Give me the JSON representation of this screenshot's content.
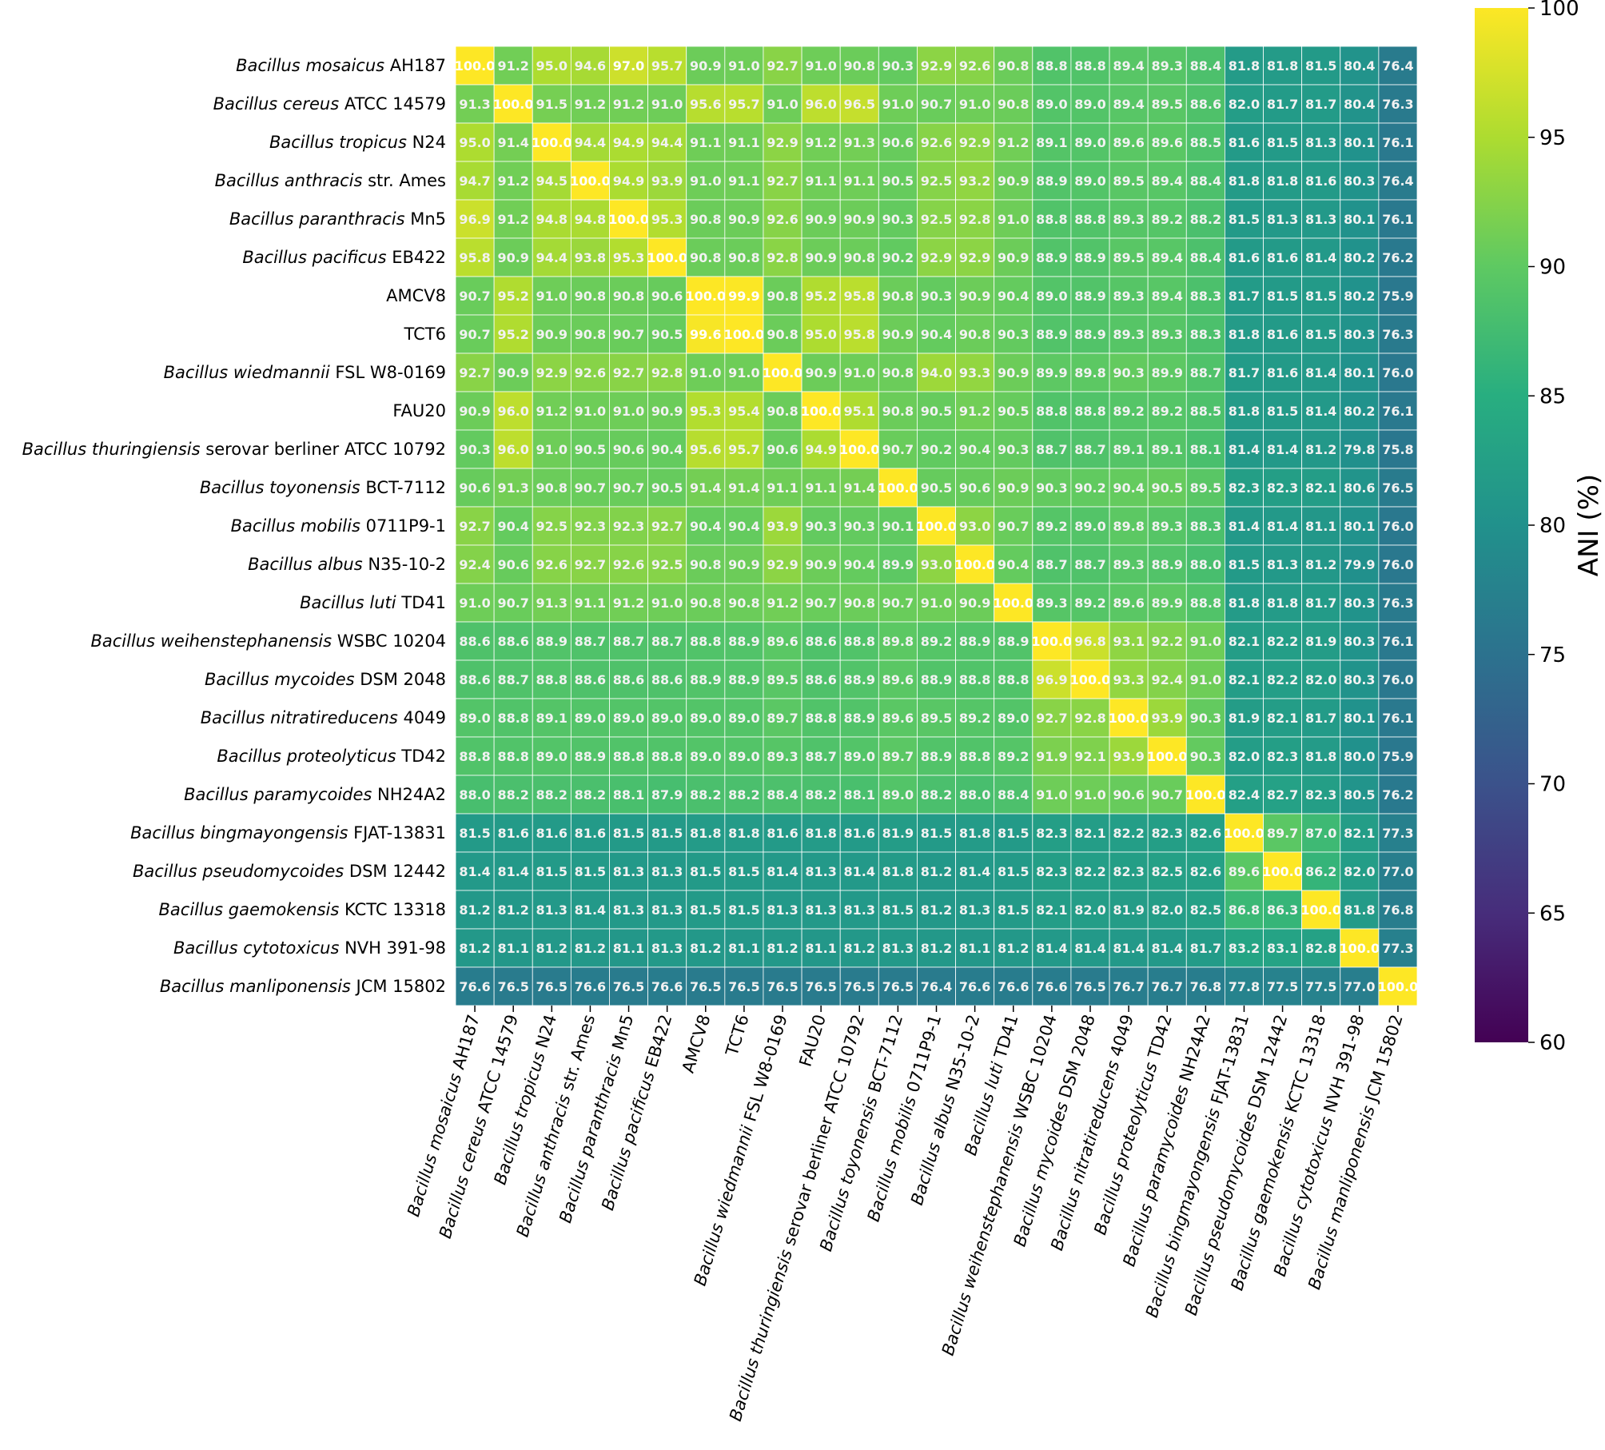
{
  "chart_data": {
    "type": "heatmap",
    "title": "",
    "xlabel": "",
    "ylabel": "",
    "labels": [
      {
        "sp": "Bacillus mosaicus",
        "strain": " AH187"
      },
      {
        "sp": "Bacillus cereus",
        "strain": " ATCC 14579"
      },
      {
        "sp": "Bacillus tropicus",
        "strain": " N24"
      },
      {
        "sp": "Bacillus anthracis",
        "strain": " str. Ames"
      },
      {
        "sp": "Bacillus paranthracis",
        "strain": " Mn5"
      },
      {
        "sp": "Bacillus pacificus",
        "strain": " EB422"
      },
      {
        "sp": "",
        "strain": "AMCV8"
      },
      {
        "sp": "",
        "strain": "TCT6"
      },
      {
        "sp": "Bacillus wiedmannii",
        "strain": " FSL W8-0169"
      },
      {
        "sp": "",
        "strain": "FAU20"
      },
      {
        "sp": "Bacillus thuringiensis",
        "strain": " serovar berliner ATCC 10792"
      },
      {
        "sp": "Bacillus toyonensis",
        "strain": " BCT-7112"
      },
      {
        "sp": "Bacillus mobilis",
        "strain": " 0711P9-1"
      },
      {
        "sp": "Bacillus albus",
        "strain": " N35-10-2"
      },
      {
        "sp": "Bacillus luti",
        "strain": " TD41"
      },
      {
        "sp": "Bacillus weihenstephanensis",
        "strain": " WSBC 10204"
      },
      {
        "sp": "Bacillus mycoides",
        "strain": " DSM 2048"
      },
      {
        "sp": "Bacillus nitratireducens",
        "strain": " 4049"
      },
      {
        "sp": "Bacillus proteolyticus",
        "strain": " TD42"
      },
      {
        "sp": "Bacillus paramycoides",
        "strain": " NH24A2"
      },
      {
        "sp": "Bacillus bingmayongensis",
        "strain": " FJAT-13831"
      },
      {
        "sp": "Bacillus pseudomycoides",
        "strain": " DSM 12442"
      },
      {
        "sp": "Bacillus gaemokensis",
        "strain": " KCTC 13318"
      },
      {
        "sp": "Bacillus cytotoxicus",
        "strain": " NVH 391-98"
      },
      {
        "sp": "Bacillus manliponensis",
        "strain": " JCM 15802"
      }
    ],
    "values": [
      [
        100.0,
        91.2,
        95.0,
        94.6,
        97.0,
        95.7,
        90.9,
        91.0,
        92.7,
        91.0,
        90.8,
        90.3,
        92.9,
        92.6,
        90.8,
        88.8,
        88.8,
        89.4,
        89.3,
        88.4,
        81.8,
        81.8,
        81.5,
        80.4,
        76.4
      ],
      [
        91.3,
        100.0,
        91.5,
        91.2,
        91.2,
        91.0,
        95.6,
        95.7,
        91.0,
        96.0,
        96.5,
        91.0,
        90.7,
        91.0,
        90.8,
        89.0,
        89.0,
        89.4,
        89.5,
        88.6,
        82.0,
        81.7,
        81.7,
        80.4,
        76.3
      ],
      [
        95.0,
        91.4,
        100.0,
        94.4,
        94.9,
        94.4,
        91.1,
        91.1,
        92.9,
        91.2,
        91.3,
        90.6,
        92.6,
        92.9,
        91.2,
        89.1,
        89.0,
        89.6,
        89.6,
        88.5,
        81.6,
        81.5,
        81.3,
        80.1,
        76.1
      ],
      [
        94.7,
        91.2,
        94.5,
        100.0,
        94.9,
        93.9,
        91.0,
        91.1,
        92.7,
        91.1,
        91.1,
        90.5,
        92.5,
        93.2,
        90.9,
        88.9,
        89.0,
        89.5,
        89.4,
        88.4,
        81.8,
        81.8,
        81.6,
        80.3,
        76.4
      ],
      [
        96.9,
        91.2,
        94.8,
        94.8,
        100.0,
        95.3,
        90.8,
        90.9,
        92.6,
        90.9,
        90.9,
        90.3,
        92.5,
        92.8,
        91.0,
        88.8,
        88.8,
        89.3,
        89.2,
        88.2,
        81.5,
        81.3,
        81.3,
        80.1,
        76.1
      ],
      [
        95.8,
        90.9,
        94.4,
        93.8,
        95.3,
        100.0,
        90.8,
        90.8,
        92.8,
        90.9,
        90.8,
        90.2,
        92.9,
        92.9,
        90.9,
        88.9,
        88.9,
        89.5,
        89.4,
        88.4,
        81.6,
        81.6,
        81.4,
        80.2,
        76.2
      ],
      [
        90.7,
        95.2,
        91.0,
        90.8,
        90.8,
        90.6,
        100.0,
        99.9,
        90.8,
        95.2,
        95.8,
        90.8,
        90.3,
        90.9,
        90.4,
        89.0,
        88.9,
        89.3,
        89.4,
        88.3,
        81.7,
        81.5,
        81.5,
        80.2,
        75.9
      ],
      [
        90.7,
        95.2,
        90.9,
        90.8,
        90.7,
        90.5,
        99.6,
        100.0,
        90.8,
        95.0,
        95.8,
        90.9,
        90.4,
        90.8,
        90.3,
        88.9,
        88.9,
        89.3,
        89.3,
        88.3,
        81.8,
        81.6,
        81.5,
        80.3,
        76.3
      ],
      [
        92.7,
        90.9,
        92.9,
        92.6,
        92.7,
        92.8,
        91.0,
        91.0,
        100.0,
        90.9,
        91.0,
        90.8,
        94.0,
        93.3,
        90.9,
        89.9,
        89.8,
        90.3,
        89.9,
        88.7,
        81.7,
        81.6,
        81.4,
        80.1,
        76.0
      ],
      [
        90.9,
        96.0,
        91.2,
        91.0,
        91.0,
        90.9,
        95.3,
        95.4,
        90.8,
        100.0,
        95.1,
        90.8,
        90.5,
        91.2,
        90.5,
        88.8,
        88.8,
        89.2,
        89.2,
        88.5,
        81.8,
        81.5,
        81.4,
        80.2,
        76.1
      ],
      [
        90.3,
        96.0,
        91.0,
        90.5,
        90.6,
        90.4,
        95.6,
        95.7,
        90.6,
        94.9,
        100.0,
        90.7,
        90.2,
        90.4,
        90.3,
        88.7,
        88.7,
        89.1,
        89.1,
        88.1,
        81.4,
        81.4,
        81.2,
        79.8,
        75.8
      ],
      [
        90.6,
        91.3,
        90.8,
        90.7,
        90.7,
        90.5,
        91.4,
        91.4,
        91.1,
        91.1,
        91.4,
        100.0,
        90.5,
        90.6,
        90.9,
        90.3,
        90.2,
        90.4,
        90.5,
        89.5,
        82.3,
        82.3,
        82.1,
        80.6,
        76.5
      ],
      [
        92.7,
        90.4,
        92.5,
        92.3,
        92.3,
        92.7,
        90.4,
        90.4,
        93.9,
        90.3,
        90.3,
        90.1,
        100.0,
        93.0,
        90.7,
        89.2,
        89.0,
        89.8,
        89.3,
        88.3,
        81.4,
        81.4,
        81.1,
        80.1,
        76.0
      ],
      [
        92.4,
        90.6,
        92.6,
        92.7,
        92.6,
        92.5,
        90.8,
        90.9,
        92.9,
        90.9,
        90.4,
        89.9,
        93.0,
        100.0,
        90.4,
        88.7,
        88.7,
        89.3,
        88.9,
        88.0,
        81.5,
        81.3,
        81.2,
        79.9,
        76.0
      ],
      [
        91.0,
        90.7,
        91.3,
        91.1,
        91.2,
        91.0,
        90.8,
        90.8,
        91.2,
        90.7,
        90.8,
        90.7,
        91.0,
        90.9,
        100.0,
        89.3,
        89.2,
        89.6,
        89.9,
        88.8,
        81.8,
        81.8,
        81.7,
        80.3,
        76.3
      ],
      [
        88.6,
        88.6,
        88.9,
        88.7,
        88.7,
        88.7,
        88.8,
        88.9,
        89.6,
        88.6,
        88.8,
        89.8,
        89.2,
        88.9,
        88.9,
        100.0,
        96.8,
        93.1,
        92.2,
        91.0,
        82.1,
        82.2,
        81.9,
        80.3,
        76.1
      ],
      [
        88.6,
        88.7,
        88.8,
        88.6,
        88.6,
        88.6,
        88.9,
        88.9,
        89.5,
        88.6,
        88.9,
        89.6,
        88.9,
        88.8,
        88.8,
        96.9,
        100.0,
        93.3,
        92.4,
        91.0,
        82.1,
        82.2,
        82.0,
        80.3,
        76.0
      ],
      [
        89.0,
        88.8,
        89.1,
        89.0,
        89.0,
        89.0,
        89.0,
        89.0,
        89.7,
        88.8,
        88.9,
        89.6,
        89.5,
        89.2,
        89.0,
        92.7,
        92.8,
        100.0,
        93.9,
        90.3,
        81.9,
        82.1,
        81.7,
        80.1,
        76.1
      ],
      [
        88.8,
        88.8,
        89.0,
        88.9,
        88.8,
        88.8,
        89.0,
        89.0,
        89.3,
        88.7,
        89.0,
        89.7,
        88.9,
        88.8,
        89.2,
        91.9,
        92.1,
        93.9,
        100.0,
        90.3,
        82.0,
        82.3,
        81.8,
        80.0,
        75.9
      ],
      [
        88.0,
        88.2,
        88.2,
        88.2,
        88.1,
        87.9,
        88.2,
        88.2,
        88.4,
        88.2,
        88.1,
        89.0,
        88.2,
        88.0,
        88.4,
        91.0,
        91.0,
        90.6,
        90.7,
        100.0,
        82.4,
        82.7,
        82.3,
        80.5,
        76.2
      ],
      [
        81.5,
        81.6,
        81.6,
        81.6,
        81.5,
        81.5,
        81.8,
        81.8,
        81.6,
        81.8,
        81.6,
        81.9,
        81.5,
        81.8,
        81.5,
        82.3,
        82.1,
        82.2,
        82.3,
        82.6,
        100.0,
        89.7,
        87.0,
        82.1,
        77.3
      ],
      [
        81.4,
        81.4,
        81.5,
        81.5,
        81.3,
        81.3,
        81.5,
        81.5,
        81.4,
        81.3,
        81.4,
        81.8,
        81.2,
        81.4,
        81.5,
        82.3,
        82.2,
        82.3,
        82.5,
        82.6,
        89.6,
        100.0,
        86.2,
        82.0,
        77.0
      ],
      [
        81.2,
        81.2,
        81.3,
        81.4,
        81.3,
        81.3,
        81.5,
        81.5,
        81.3,
        81.3,
        81.3,
        81.5,
        81.2,
        81.3,
        81.5,
        82.1,
        82.0,
        81.9,
        82.0,
        82.5,
        86.8,
        86.3,
        100.0,
        81.8,
        76.8
      ],
      [
        81.2,
        81.1,
        81.2,
        81.2,
        81.1,
        81.3,
        81.2,
        81.1,
        81.2,
        81.1,
        81.2,
        81.3,
        81.2,
        81.1,
        81.2,
        81.4,
        81.4,
        81.4,
        81.4,
        81.7,
        83.2,
        83.1,
        82.8,
        100.0,
        77.3
      ],
      [
        76.6,
        76.5,
        76.5,
        76.6,
        76.5,
        76.6,
        76.5,
        76.5,
        76.5,
        76.5,
        76.5,
        76.5,
        76.4,
        76.6,
        76.6,
        76.6,
        76.5,
        76.7,
        76.7,
        76.8,
        77.8,
        77.5,
        77.5,
        77.0,
        100.0
      ]
    ],
    "colormap": "viridis",
    "vmin": 60,
    "vmax": 100,
    "colorbar": {
      "label": "ANI (%)",
      "ticks": [
        "60",
        "65",
        "70",
        "75",
        "80",
        "85",
        "90",
        "95",
        "100"
      ]
    },
    "grid": false,
    "legend": "colorbar-right"
  }
}
